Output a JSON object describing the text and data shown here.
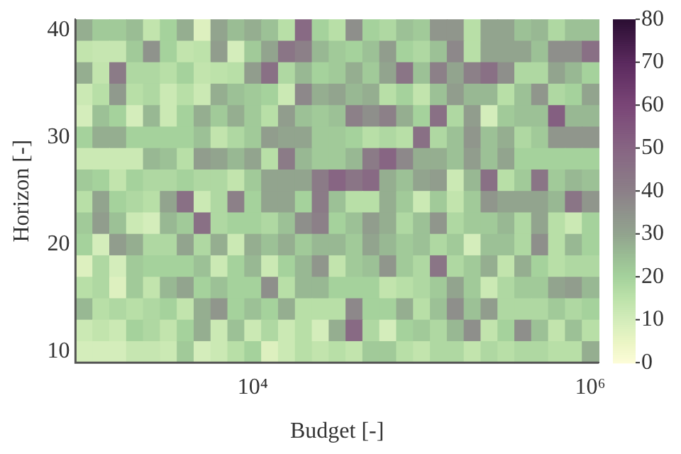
{
  "chart_data": {
    "type": "heatmap",
    "xlabel": "Budget [-]",
    "ylabel": "Horizon [-]",
    "log": "x",
    "x": [
      1000,
      1259,
      1585,
      1995,
      2512,
      3162,
      3981,
      5012,
      6310,
      7943,
      10000,
      12589,
      15849,
      19953,
      25119,
      31623,
      39811,
      50119,
      63096,
      79433,
      100000,
      125893,
      158489,
      199526,
      251189,
      316228,
      398107,
      501187,
      630957,
      794328,
      1000000
    ],
    "y": [
      40,
      38,
      36,
      34,
      32,
      30,
      28,
      26,
      24,
      22,
      20,
      18,
      16,
      14,
      12,
      10
    ],
    "xlim": [
      891,
      1122000
    ],
    "xticks": [
      {
        "value": 10000,
        "label": "10⁴"
      },
      {
        "value": 1000000,
        "label": "10⁶"
      }
    ],
    "ylim": [
      9,
      41
    ],
    "yticks": [
      10,
      20,
      30,
      40
    ],
    "clim": [
      0,
      80
    ],
    "cticks": [
      0,
      10,
      20,
      30,
      40,
      50,
      60,
      70,
      80
    ],
    "cells": [
      [
        28,
        22,
        22,
        25,
        14,
        20,
        28,
        8,
        30,
        25,
        28,
        24,
        16,
        48,
        20,
        16,
        36,
        20,
        18,
        24,
        22,
        34,
        34,
        16,
        30,
        30,
        24,
        26,
        18,
        24,
        24
      ],
      [
        14,
        13,
        13,
        22,
        35,
        20,
        14,
        15,
        32,
        10,
        22,
        30,
        44,
        40,
        26,
        22,
        20,
        24,
        32,
        20,
        18,
        24,
        38,
        16,
        30,
        30,
        30,
        24,
        36,
        36,
        46
      ],
      [
        28,
        14,
        42,
        18,
        18,
        16,
        20,
        14,
        15,
        16,
        32,
        46,
        18,
        26,
        20,
        22,
        28,
        22,
        30,
        44,
        24,
        40,
        30,
        40,
        46,
        36,
        18,
        18,
        30,
        26,
        20
      ],
      [
        12,
        16,
        33,
        16,
        18,
        12,
        16,
        12,
        28,
        24,
        22,
        20,
        12,
        38,
        28,
        30,
        26,
        28,
        16,
        20,
        14,
        24,
        32,
        26,
        26,
        16,
        24,
        34,
        18,
        20,
        30
      ],
      [
        10,
        24,
        20,
        10,
        26,
        12,
        20,
        28,
        22,
        28,
        22,
        16,
        32,
        24,
        22,
        24,
        40,
        36,
        40,
        28,
        20,
        46,
        18,
        32,
        10,
        22,
        24,
        24,
        52,
        26,
        26
      ],
      [
        20,
        28,
        28,
        20,
        20,
        20,
        20,
        24,
        14,
        18,
        22,
        32,
        30,
        30,
        22,
        22,
        20,
        16,
        18,
        16,
        46,
        18,
        24,
        34,
        24,
        28,
        18,
        22,
        34,
        34,
        34
      ],
      [
        12,
        12,
        12,
        12,
        26,
        24,
        16,
        32,
        30,
        26,
        30,
        16,
        42,
        26,
        22,
        22,
        26,
        42,
        50,
        38,
        28,
        28,
        24,
        32,
        24,
        30,
        20,
        20,
        20,
        20,
        20
      ],
      [
        22,
        20,
        14,
        20,
        18,
        18,
        20,
        18,
        18,
        14,
        22,
        30,
        30,
        30,
        42,
        50,
        44,
        48,
        28,
        24,
        30,
        32,
        12,
        26,
        46,
        16,
        22,
        44,
        22,
        26,
        24
      ],
      [
        16,
        30,
        20,
        18,
        16,
        30,
        46,
        12,
        18,
        40,
        20,
        30,
        30,
        20,
        42,
        24,
        16,
        16,
        28,
        22,
        12,
        22,
        14,
        22,
        34,
        30,
        30,
        30,
        26,
        44,
        34
      ],
      [
        22,
        32,
        24,
        12,
        10,
        26,
        22,
        46,
        18,
        20,
        20,
        18,
        24,
        36,
        40,
        20,
        24,
        32,
        28,
        18,
        24,
        34,
        18,
        22,
        22,
        26,
        18,
        30,
        16,
        12,
        20
      ],
      [
        20,
        10,
        32,
        28,
        18,
        18,
        30,
        18,
        28,
        12,
        28,
        24,
        28,
        22,
        26,
        26,
        22,
        30,
        26,
        22,
        24,
        18,
        22,
        10,
        24,
        24,
        18,
        36,
        16,
        26,
        20
      ],
      [
        8,
        18,
        10,
        22,
        20,
        20,
        20,
        24,
        12,
        20,
        26,
        12,
        20,
        26,
        34,
        14,
        22,
        24,
        34,
        22,
        18,
        44,
        18,
        22,
        28,
        14,
        28,
        20,
        16,
        18,
        18
      ],
      [
        16,
        18,
        8,
        22,
        14,
        26,
        30,
        20,
        24,
        20,
        20,
        36,
        16,
        26,
        26,
        20,
        20,
        20,
        14,
        16,
        18,
        22,
        30,
        22,
        12,
        18,
        22,
        22,
        30,
        32,
        26
      ],
      [
        26,
        16,
        18,
        16,
        18,
        20,
        14,
        28,
        34,
        20,
        24,
        20,
        28,
        16,
        16,
        16,
        38,
        20,
        20,
        28,
        16,
        24,
        36,
        24,
        32,
        18,
        18,
        18,
        22,
        18,
        20
      ],
      [
        12,
        14,
        12,
        20,
        18,
        14,
        20,
        28,
        12,
        24,
        12,
        18,
        12,
        16,
        10,
        28,
        48,
        18,
        10,
        20,
        22,
        18,
        26,
        36,
        14,
        20,
        36,
        24,
        14,
        24,
        16
      ],
      [
        10,
        10,
        10,
        13,
        13,
        12,
        22,
        10,
        12,
        16,
        20,
        8,
        12,
        16,
        14,
        16,
        14,
        22,
        22,
        16,
        14,
        18,
        18,
        14,
        18,
        16,
        18,
        18,
        16,
        16,
        28
      ]
    ]
  }
}
